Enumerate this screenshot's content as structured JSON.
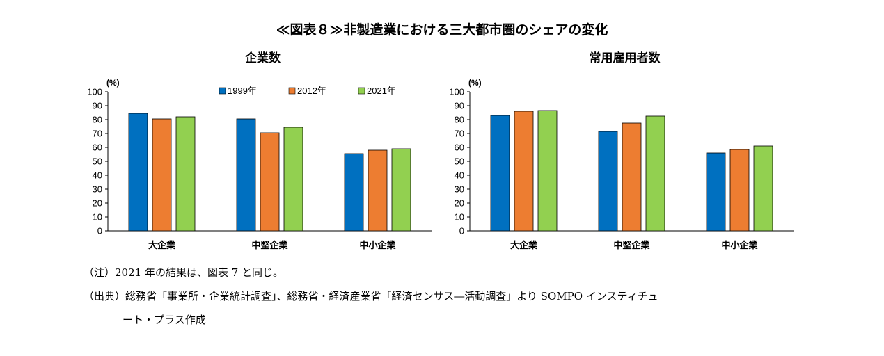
{
  "page_title": "≪図表８≫非製造業における三大都市圏のシェアの変化",
  "notes": {
    "note1": "（注）2021 年の結果は、図表 7 と同じ。",
    "source_line1": "（出典）総務省「事業所・企業統計調査」、総務省・経済産業省「経済センサス―活動調査」より SOMPO インスティチュ",
    "source_line2": "ート・プラス作成"
  },
  "colors": {
    "1999年": "#0070C0",
    "2012年": "#ED7D31",
    "2021年": "#92D050"
  },
  "chart_data": [
    {
      "type": "bar",
      "title": "企業数",
      "ylabel": "(%)",
      "ylim": [
        0,
        100
      ],
      "yticks": [
        0,
        10,
        20,
        30,
        40,
        50,
        60,
        70,
        80,
        90,
        100
      ],
      "categories": [
        "大企業",
        "中堅企業",
        "中小企業"
      ],
      "legend_position": "top",
      "series": [
        {
          "name": "1999年",
          "values": [
            84.5,
            80.5,
            55.5
          ]
        },
        {
          "name": "2012年",
          "values": [
            80.5,
            70.5,
            58
          ]
        },
        {
          "name": "2021年",
          "values": [
            82,
            74.5,
            59
          ]
        }
      ]
    },
    {
      "type": "bar",
      "title": "常用雇用者数",
      "ylabel": "(%)",
      "ylim": [
        0,
        100
      ],
      "yticks": [
        0,
        10,
        20,
        30,
        40,
        50,
        60,
        70,
        80,
        90,
        100
      ],
      "categories": [
        "大企業",
        "中堅企業",
        "中小企業"
      ],
      "series": [
        {
          "name": "1999年",
          "values": [
            83,
            71.5,
            56
          ]
        },
        {
          "name": "2012年",
          "values": [
            86,
            77.5,
            58.5
          ]
        },
        {
          "name": "2021年",
          "values": [
            86.5,
            82.5,
            61
          ]
        }
      ]
    }
  ]
}
